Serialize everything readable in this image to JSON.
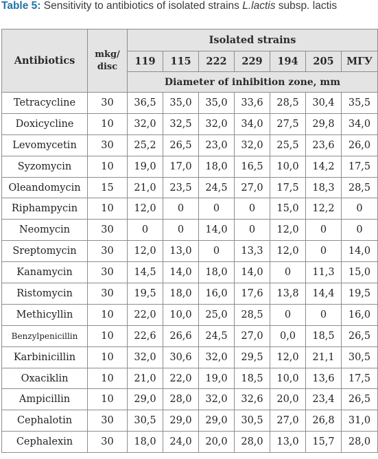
{
  "caption": {
    "label": "Table 5:",
    "text_before": "Sensitivity to antibiotics of isolated strains",
    "species": "L.lactis",
    "text_after": "subsp. lactis"
  },
  "header": {
    "antibiotics": "Antibiotics",
    "dose": "mkg/ disc",
    "strains_title": "Isolated strains",
    "strains": [
      "119",
      "115",
      "222",
      "229",
      "194",
      "205",
      "МГУ"
    ],
    "subtitle": "Diameter of inhibition zone, mm"
  },
  "rows": [
    {
      "name": "Tetracycline",
      "dose": "30",
      "values": [
        "36,5",
        "35,0",
        "35,0",
        "33,6",
        "28,5",
        "30,4",
        "35,5"
      ]
    },
    {
      "name": "Doxicycline",
      "dose": "10",
      "values": [
        "32,0",
        "32,5",
        "32,0",
        "34,0",
        "27,5",
        "29,8",
        "34,0"
      ]
    },
    {
      "name": "Levomycetin",
      "dose": "30",
      "values": [
        "25,2",
        "26,5",
        "23,0",
        "32,0",
        "25,5",
        "23,6",
        "26,0"
      ]
    },
    {
      "name": "Syzomycin",
      "dose": "10",
      "values": [
        "19,0",
        "17,0",
        "18,0",
        "16,5",
        "10,0",
        "14,2",
        "17,5"
      ]
    },
    {
      "name": "Oleandomycin",
      "dose": "15",
      "values": [
        "21,0",
        "23,5",
        "24,5",
        "27,0",
        "17,5",
        "18,3",
        "28,5"
      ]
    },
    {
      "name": "Riphampycin",
      "dose": "10",
      "values": [
        "12,0",
        "0",
        "0",
        "0",
        "15,0",
        "12,2",
        "0"
      ]
    },
    {
      "name": "Neomycin",
      "dose": "30",
      "values": [
        "0",
        "0",
        "14,0",
        "0",
        "12,0",
        "0",
        "0"
      ]
    },
    {
      "name": "Sreptomycin",
      "dose": "30",
      "values": [
        "12,0",
        "13,0",
        "0",
        "13,3",
        "12,0",
        "0",
        "14,0"
      ]
    },
    {
      "name": "Kanamycin",
      "dose": "30",
      "values": [
        "14,5",
        "14,0",
        "18,0",
        "14,0",
        "0",
        "11,3",
        "15,0"
      ]
    },
    {
      "name": "Ristomycin",
      "dose": "30",
      "values": [
        "19,5",
        "18,0",
        "16,0",
        "17,6",
        "13,8",
        "14,4",
        "19,5"
      ]
    },
    {
      "name": "Methicyllin",
      "dose": "10",
      "values": [
        "22,0",
        "10,0",
        "25,0",
        "28,5",
        "0",
        "0",
        "16,0"
      ]
    },
    {
      "name": "Benzylpenicillin",
      "dose": "10",
      "values": [
        "22,6",
        "26,6",
        "24,5",
        "27,0",
        "0,0",
        "18,5",
        "26,5"
      ]
    },
    {
      "name": "Karbinicillin",
      "dose": "10",
      "values": [
        "32,0",
        "30,6",
        "32,0",
        "29,5",
        "12,0",
        "21,1",
        "30,5"
      ]
    },
    {
      "name": "Oxaciklin",
      "dose": "10",
      "values": [
        "21,0",
        "22,0",
        "19,0",
        "18,5",
        "10,0",
        "13,6",
        "17,5"
      ]
    },
    {
      "name": "Ampicillin",
      "dose": "10",
      "values": [
        "29,0",
        "28,0",
        "32,0",
        "32,6",
        "20,0",
        "23,4",
        "26,5"
      ]
    },
    {
      "name": "Cephalotin",
      "dose": "30",
      "values": [
        "30,5",
        "29,0",
        "29,0",
        "30,5",
        "27,0",
        "26,8",
        "31,0"
      ]
    },
    {
      "name": "Cephalexin",
      "dose": "30",
      "values": [
        "18,0",
        "24,0",
        "20,0",
        "28,0",
        "13,0",
        "15,7",
        "28,0"
      ]
    }
  ]
}
